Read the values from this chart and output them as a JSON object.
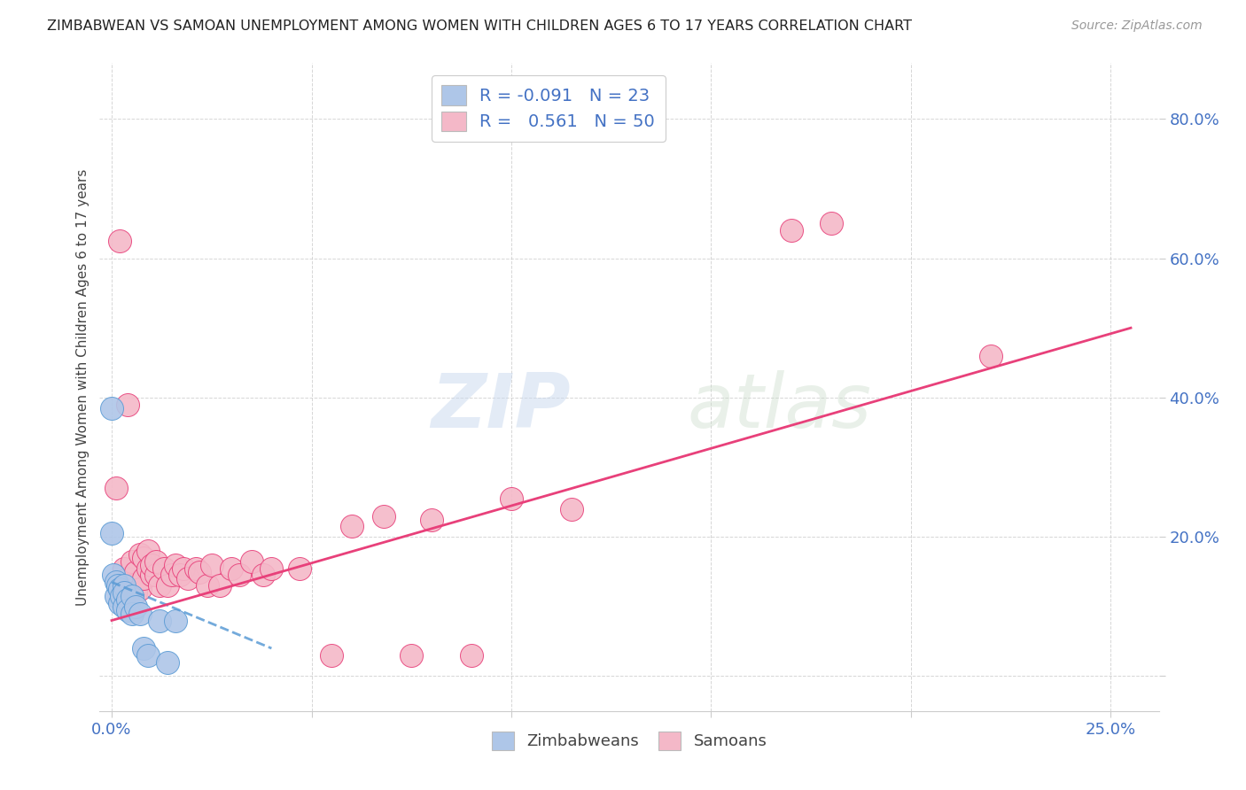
{
  "title": "ZIMBABWEAN VS SAMOAN UNEMPLOYMENT AMONG WOMEN WITH CHILDREN AGES 6 TO 17 YEARS CORRELATION CHART",
  "source": "Source: ZipAtlas.com",
  "ylabel": "Unemployment Among Women with Children Ages 6 to 17 years",
  "ytick_vals": [
    0.0,
    0.2,
    0.4,
    0.6,
    0.8
  ],
  "ytick_labels": [
    "",
    "20.0%",
    "40.0%",
    "60.0%",
    "80.0%"
  ],
  "xlim": [
    -0.003,
    0.262
  ],
  "ylim": [
    -0.05,
    0.88
  ],
  "legend_r_zim": "-0.091",
  "legend_n_zim": "23",
  "legend_r_sam": "0.561",
  "legend_n_sam": "50",
  "zim_color": "#aec6e8",
  "sam_color": "#f4b8c8",
  "zim_line_color": "#5b9bd5",
  "sam_line_color": "#e8407a",
  "watermark_zip": "ZIP",
  "watermark_atlas": "atlas",
  "zim_points_x": [
    0.0,
    0.0,
    0.0005,
    0.001,
    0.001,
    0.0015,
    0.002,
    0.002,
    0.0025,
    0.003,
    0.003,
    0.003,
    0.004,
    0.004,
    0.005,
    0.005,
    0.006,
    0.007,
    0.008,
    0.009,
    0.012,
    0.014,
    0.016
  ],
  "zim_points_y": [
    0.385,
    0.205,
    0.145,
    0.135,
    0.115,
    0.13,
    0.125,
    0.105,
    0.115,
    0.13,
    0.12,
    0.1,
    0.11,
    0.095,
    0.115,
    0.09,
    0.1,
    0.09,
    0.04,
    0.03,
    0.08,
    0.02,
    0.08
  ],
  "sam_points_x": [
    0.001,
    0.002,
    0.003,
    0.003,
    0.004,
    0.004,
    0.005,
    0.005,
    0.006,
    0.006,
    0.007,
    0.007,
    0.008,
    0.008,
    0.009,
    0.009,
    0.01,
    0.01,
    0.011,
    0.011,
    0.012,
    0.013,
    0.014,
    0.015,
    0.016,
    0.017,
    0.018,
    0.019,
    0.021,
    0.022,
    0.024,
    0.025,
    0.027,
    0.03,
    0.032,
    0.035,
    0.038,
    0.04,
    0.047,
    0.055,
    0.06,
    0.068,
    0.075,
    0.08,
    0.09,
    0.1,
    0.115,
    0.17,
    0.18,
    0.22
  ],
  "sam_points_y": [
    0.27,
    0.625,
    0.155,
    0.13,
    0.39,
    0.14,
    0.13,
    0.165,
    0.12,
    0.15,
    0.125,
    0.175,
    0.14,
    0.17,
    0.155,
    0.18,
    0.145,
    0.16,
    0.145,
    0.165,
    0.13,
    0.155,
    0.13,
    0.145,
    0.16,
    0.145,
    0.155,
    0.14,
    0.155,
    0.15,
    0.13,
    0.16,
    0.13,
    0.155,
    0.145,
    0.165,
    0.145,
    0.155,
    0.155,
    0.03,
    0.215,
    0.23,
    0.03,
    0.225,
    0.03,
    0.255,
    0.24,
    0.64,
    0.65,
    0.46
  ],
  "sam_line_x": [
    0.0,
    0.255
  ],
  "sam_line_y": [
    0.08,
    0.5
  ],
  "zim_line_x": [
    0.0,
    0.04
  ],
  "zim_line_y": [
    0.135,
    0.04
  ]
}
